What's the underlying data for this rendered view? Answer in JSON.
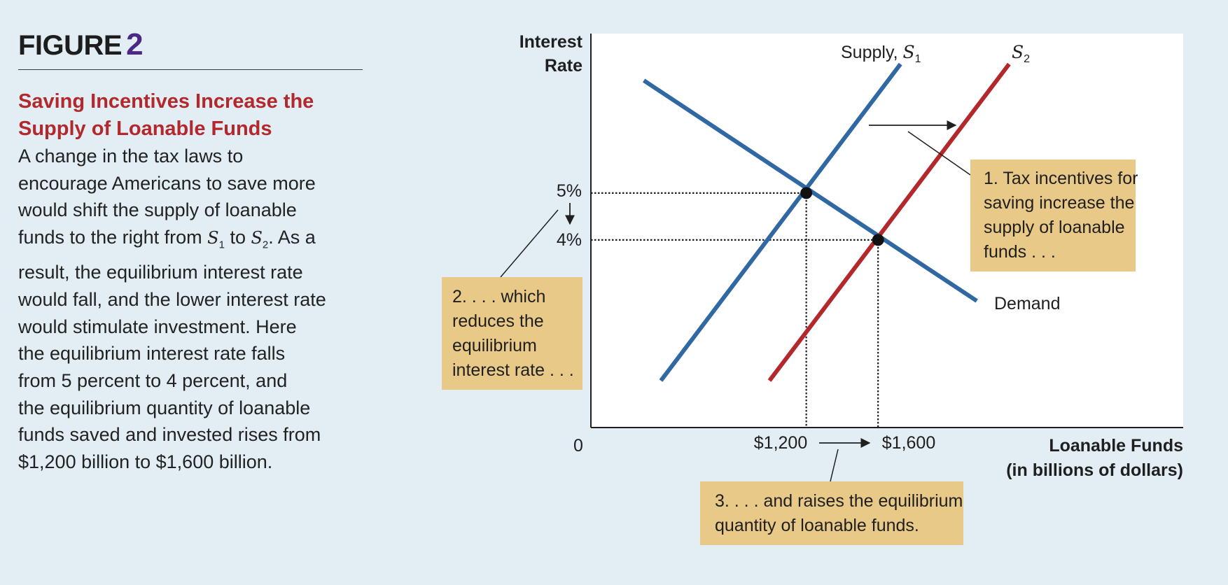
{
  "figure": {
    "label": "FIGURE",
    "number": "2",
    "caption_title_line1": "Saving Incentives Increase the",
    "caption_title_line2": "Supply of Loanable Funds",
    "caption_body": [
      [
        "A change in the tax laws to"
      ],
      [
        "encourage Americans to save more"
      ],
      [
        "would shift the supply of loanable"
      ],
      [
        "funds to the right from ",
        {
          "v": "S",
          "s": "1"
        },
        " to ",
        {
          "v": "S",
          "s": "2"
        },
        ". As a"
      ],
      [
        "result, the equilibrium interest rate"
      ],
      [
        "would fall, and the lower interest rate"
      ],
      [
        "would stimulate investment. Here"
      ],
      [
        "the equilibrium interest rate falls"
      ],
      [
        "from 5 percent to 4 percent, and"
      ],
      [
        "the equilibrium quantity of loanable"
      ],
      [
        "funds saved and invested rises from"
      ],
      [
        "$1,200 billion to $1,600 billion."
      ]
    ]
  },
  "colors": {
    "supply1": "#3068a3",
    "supply2": "#b3282d",
    "demand": "#3068a3",
    "annotation_box": "#e8c987",
    "background": "#e2eef4",
    "plot": "#ffffff"
  },
  "chart_data": {
    "type": "line",
    "ylabel_line1": "Interest",
    "ylabel_line2": "Rate",
    "xlabel_line1": "Loanable Funds",
    "xlabel_line2": "(in billions of dollars)",
    "origin_label": "0",
    "y_ticks": [
      {
        "value": 5,
        "label": "5%"
      },
      {
        "value": 4,
        "label": "4%"
      }
    ],
    "x_ticks": [
      {
        "value": 1200,
        "label": "$1,200"
      },
      {
        "value": 1600,
        "label": "$1,600"
      }
    ],
    "xlim": [
      0,
      3300
    ],
    "ylim": [
      0,
      8.4
    ],
    "series": [
      {
        "name": "Supply, S1",
        "label_text": "Supply, ",
        "label_var": "S",
        "label_sub": "1",
        "color": "#3068a3",
        "points": [
          [
            390,
            1.0
          ],
          [
            1725,
            7.75
          ]
        ]
      },
      {
        "name": "S2",
        "label_text": "",
        "label_var": "S",
        "label_sub": "2",
        "color": "#b3282d",
        "points": [
          [
            995,
            1.0
          ],
          [
            2330,
            7.75
          ]
        ]
      },
      {
        "name": "Demand",
        "label_text": "Demand",
        "color": "#3068a3",
        "points": [
          [
            295,
            7.4
          ],
          [
            2150,
            2.7
          ]
        ]
      }
    ],
    "equilibria": [
      {
        "x": 1200,
        "y": 5
      },
      {
        "x": 1600,
        "y": 4
      }
    ],
    "annotations": {
      "a1": [
        "1. Tax incentives for",
        "saving increase the",
        "supply of loanable",
        "funds . . ."
      ],
      "a2": [
        "2. . . . which",
        "reduces the",
        "equilibrium",
        "interest rate . . ."
      ],
      "a3": [
        "3. . . . and raises the equilibrium",
        "quantity of loanable funds."
      ]
    }
  }
}
